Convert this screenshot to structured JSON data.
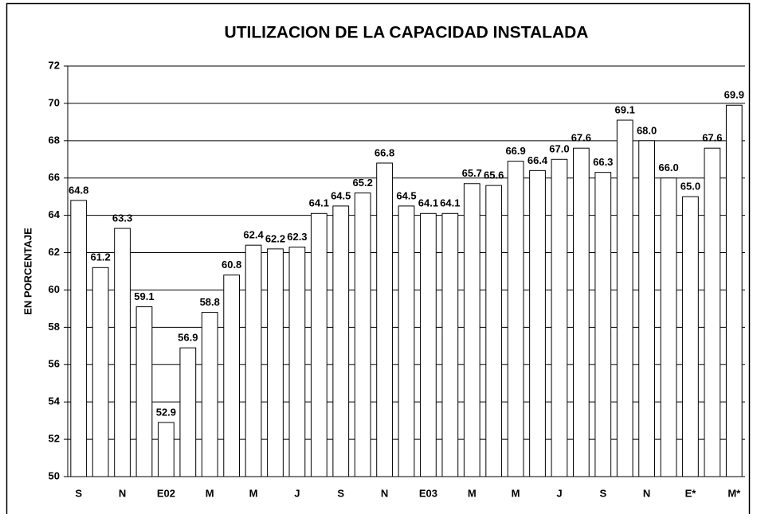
{
  "chart_data": {
    "type": "bar",
    "title": "UTILIZACION DE LA CAPACIDAD INSTALADA",
    "y_label": "EN PORCENTAJE",
    "categories": [
      "S",
      null,
      "N",
      null,
      "E02",
      null,
      "M",
      null,
      "M",
      null,
      "J",
      null,
      "S",
      null,
      "N",
      null,
      "E03",
      null,
      "M",
      null,
      "M",
      null,
      "J",
      null,
      "S",
      null,
      "N",
      null,
      "E*",
      null,
      "M*"
    ],
    "values": [
      64.8,
      61.2,
      63.3,
      59.1,
      52.9,
      56.9,
      58.8,
      60.8,
      62.4,
      62.2,
      62.3,
      64.1,
      64.5,
      65.2,
      66.8,
      64.5,
      64.1,
      64.1,
      65.7,
      65.6,
      66.9,
      66.4,
      67.0,
      67.6,
      66.3,
      69.1,
      68.0,
      66.0,
      65.0,
      67.6,
      69.9
    ],
    "value_labels": [
      "64.8",
      "61.2",
      "63.3",
      "59.1",
      "52.9",
      "56.9",
      "58.8",
      "60.8",
      "62.4",
      "62.2",
      "62.3",
      "64.1",
      "64.5",
      "65.2",
      "66.8",
      "64.5",
      "64.1",
      "64.1",
      "65.7",
      "65.6",
      "66.9",
      "66.4",
      "67.0",
      "67.6",
      "66.3",
      "69.1",
      "68.0",
      "66.0",
      "65.0",
      "67.6",
      "69.9"
    ],
    "color": "#ffffff",
    "ylim": [
      50,
      72
    ],
    "yticks": [
      50,
      52,
      54,
      56,
      58,
      60,
      62,
      64,
      66,
      68,
      70,
      72
    ],
    "grid": true
  }
}
